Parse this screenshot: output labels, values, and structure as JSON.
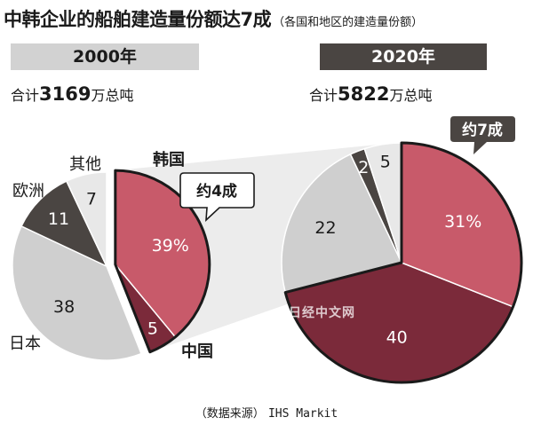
{
  "title": "中韩企业的船舶建造量份额达7成",
  "subtitle": "（各国和地区的建造量份额）",
  "source": {
    "prefix": "（数据来源）",
    "name": "IHS Markit"
  },
  "watermark": "日经中文网",
  "colors": {
    "korea": "#c85a6a",
    "china": "#7b2a3a",
    "japan": "#cfcfcf",
    "europe": "#4a4542",
    "other": "#e8e8e8",
    "banner_2000": "#d2d2d2",
    "banner_2020": "#4a4542"
  },
  "chart_data": [
    {
      "type": "pie",
      "year": "2000年",
      "total_prefix": "合计",
      "total_value": "3169",
      "total_suffix": "万总吨",
      "callout": "约4成",
      "slices": [
        {
          "name": "韩国",
          "value": 39,
          "label": "39%"
        },
        {
          "name": "中国",
          "value": 5,
          "label": "5"
        },
        {
          "name": "日本",
          "value": 38,
          "label": "38"
        },
        {
          "name": "欧洲",
          "value": 11,
          "label": "11"
        },
        {
          "name": "其他",
          "value": 7,
          "label": "7"
        }
      ]
    },
    {
      "type": "pie",
      "year": "2020年",
      "total_prefix": "合计",
      "total_value": "5822",
      "total_suffix": "万总吨",
      "callout": "约7成",
      "slices": [
        {
          "name": "韩国",
          "value": 31,
          "label": "31%"
        },
        {
          "name": "中国",
          "value": 40,
          "label": "40"
        },
        {
          "name": "日本",
          "value": 22,
          "label": "22"
        },
        {
          "name": "欧洲",
          "value": 2,
          "label": "2"
        },
        {
          "name": "其他",
          "value": 5,
          "label": "5"
        }
      ]
    }
  ]
}
